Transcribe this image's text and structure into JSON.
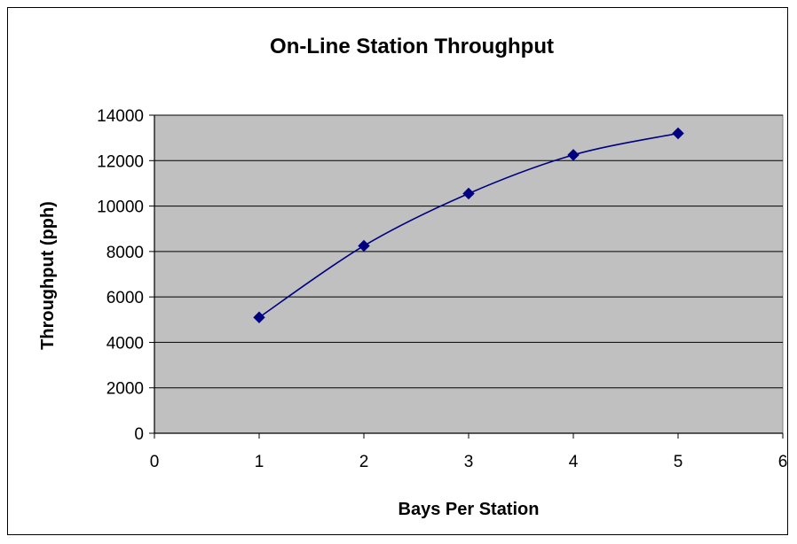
{
  "chart_data": {
    "type": "line",
    "title": "On-Line Station Throughput",
    "xlabel": "Bays Per Station",
    "ylabel": "Throughput (pph)",
    "xlim": [
      0,
      6
    ],
    "ylim": [
      0,
      14000
    ],
    "x_ticks": [
      "0",
      "1",
      "2",
      "3",
      "4",
      "5",
      "6"
    ],
    "y_ticks": [
      "0",
      "2000",
      "4000",
      "6000",
      "8000",
      "10000",
      "12000",
      "14000"
    ],
    "grid": "horizontal",
    "legend": "none",
    "plot_background": "#c0c0c0",
    "series": [
      {
        "color": "#000080",
        "marker": "diamond",
        "smooth": true,
        "x": [
          1,
          2,
          3,
          4,
          5
        ],
        "y": [
          5100,
          8250,
          10550,
          12250,
          13200
        ]
      }
    ]
  }
}
